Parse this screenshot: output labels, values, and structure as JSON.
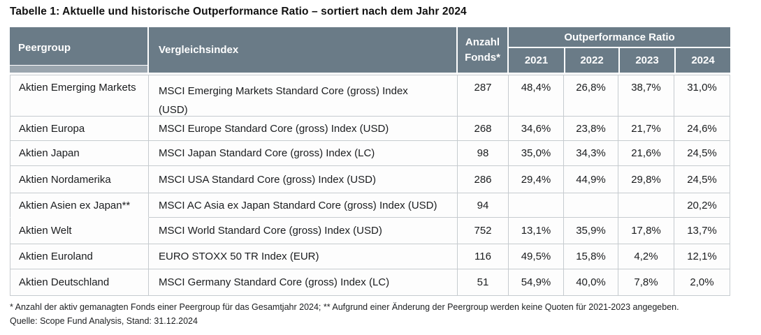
{
  "title": "Tabelle 1: Aktuelle und historische Outperformance Ratio – sortiert nach dem Jahr 2024",
  "table": {
    "columns": {
      "peergroup": "Peergroup",
      "vergleichsindex": "Vergleichsindex",
      "anzahl_fonds": "Anzahl Fonds*",
      "ratio_group": "Outperformance Ratio",
      "years": [
        "2021",
        "2022",
        "2023",
        "2024"
      ]
    },
    "rows": [
      {
        "peergroup": "Aktien Emerging Markets",
        "vergleichsindex": "MSCI Emerging Markets Standard Core (gross) Index\n(USD)",
        "anzahl_fonds": "287",
        "y2021": "48,4%",
        "y2022": "26,8%",
        "y2023": "38,7%",
        "y2024": "31,0%"
      },
      {
        "peergroup": "Aktien Europa",
        "vergleichsindex": "MSCI Europe Standard Core (gross) Index (USD)",
        "anzahl_fonds": "268",
        "y2021": "34,6%",
        "y2022": "23,8%",
        "y2023": "21,7%",
        "y2024": "24,6%"
      },
      {
        "peergroup": "Aktien Japan",
        "vergleichsindex": "MSCI Japan Standard Core (gross) Index (LC)",
        "anzahl_fonds": "98",
        "y2021": "35,0%",
        "y2022": "34,3%",
        "y2023": "21,6%",
        "y2024": "24,5%"
      },
      {
        "peergroup": "Aktien Nordamerika",
        "vergleichsindex": "MSCI USA Standard Core (gross) Index (USD)",
        "anzahl_fonds": "286",
        "y2021": "29,4%",
        "y2022": "44,9%",
        "y2023": "29,8%",
        "y2024": "24,5%"
      },
      {
        "peergroup": "Aktien Asien ex Japan**",
        "vergleichsindex": "MSCI AC Asia ex Japan Standard Core (gross) Index (USD)",
        "anzahl_fonds": "94",
        "y2021": "",
        "y2022": "",
        "y2023": "",
        "y2024": "20,2%"
      },
      {
        "peergroup": "Aktien Welt",
        "vergleichsindex": "MSCI World Standard Core (gross) Index (USD)",
        "anzahl_fonds": "752",
        "y2021": "13,1%",
        "y2022": "35,9%",
        "y2023": "17,8%",
        "y2024": "13,7%"
      },
      {
        "peergroup": "Aktien Euroland",
        "vergleichsindex": "EURO STOXX 50 TR Index (EUR)",
        "anzahl_fonds": "116",
        "y2021": "49,5%",
        "y2022": "15,8%",
        "y2023": "4,2%",
        "y2024": "12,1%"
      },
      {
        "peergroup": "Aktien Deutschland",
        "vergleichsindex": "MSCI Germany Standard Core (gross) Index (LC)",
        "anzahl_fonds": "51",
        "y2021": "54,9%",
        "y2022": "40,0%",
        "y2023": "7,8%",
        "y2024": "2,0%"
      }
    ]
  },
  "footnotes": {
    "note": "* Anzahl der aktiv gemanagten Fonds einer Peergroup für das Gesamtjahr 2024; ** Aufgrund einer Änderung der Peergroup werden keine Quoten für 2021-2023 angegeben.",
    "source": "Quelle: Scope Fund Analysis, Stand: 31.12.2024"
  },
  "colors": {
    "header_bg": "#6a7b87",
    "header_strip": "#9aa5ae",
    "body_border": "#c6cbcf",
    "cell_bg": "#fdfdfd",
    "text": "#1a1c1e",
    "header_text": "#ffffff"
  }
}
